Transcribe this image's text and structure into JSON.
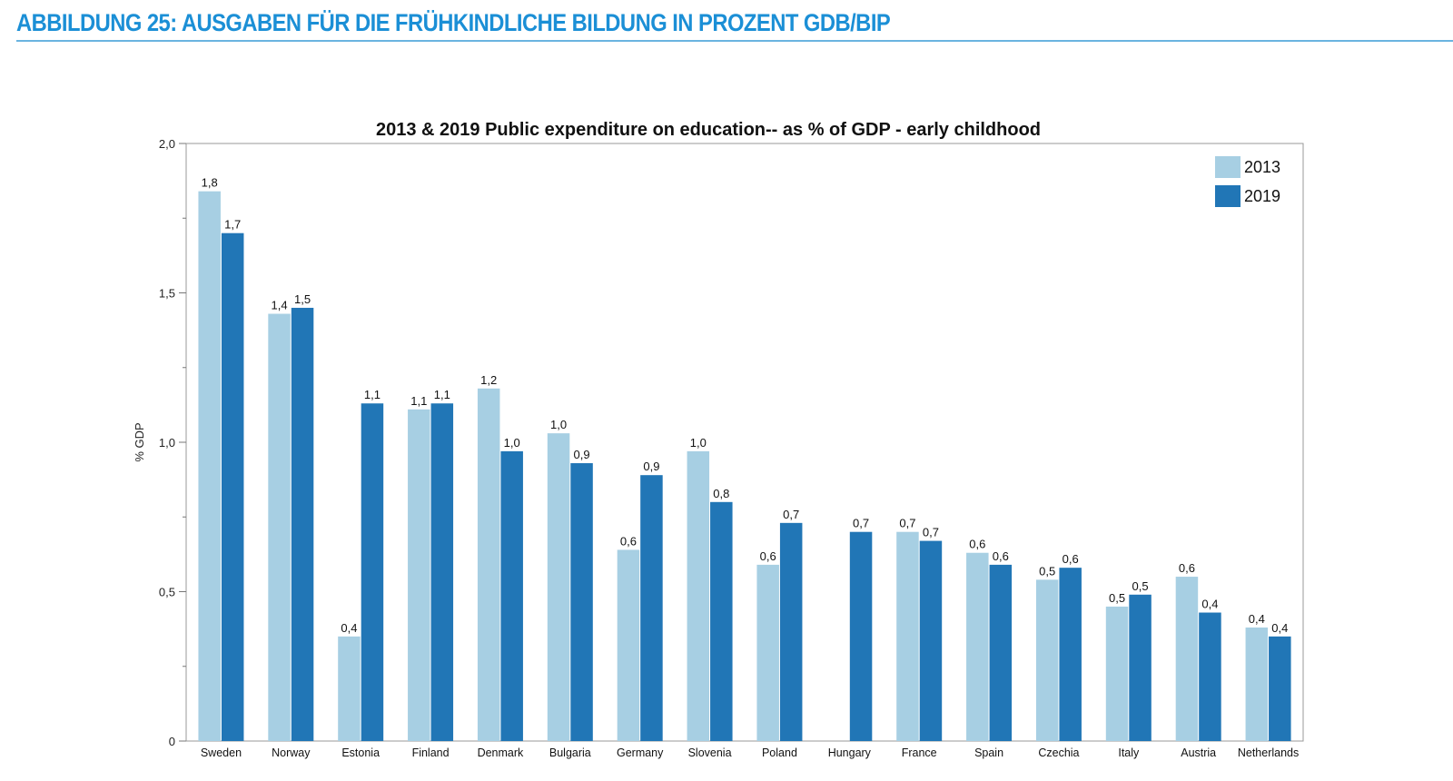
{
  "page": {
    "heading": "ABBILDUNG 25: AUSGABEN FÜR DIE FRÜHKINDLICHE BILDUNG IN PROZENT GDB/BIP"
  },
  "colors": {
    "series_2013": "#a7cfe3",
    "series_2019": "#2176b6",
    "heading": "#1b8fd6"
  },
  "chart_data": {
    "type": "bar",
    "title": "2013 & 2019 Public expenditure on education-- as % of GDP - early childhood",
    "xlabel": "",
    "ylabel": "% GDP",
    "ylim": [
      0,
      2.0
    ],
    "y_ticks": [
      {
        "value": 0,
        "label": "0"
      },
      {
        "value": 0.5,
        "label": "0,5"
      },
      {
        "value": 1.0,
        "label": "1,0"
      },
      {
        "value": 1.5,
        "label": "1,5"
      },
      {
        "value": 2.0,
        "label": "2,0"
      }
    ],
    "legend_position": "top-right",
    "categories": [
      "Sweden",
      "Norway",
      "Estonia",
      "Finland",
      "Denmark",
      "Bulgaria",
      "Germany",
      "Slovenia",
      "Poland",
      "Hungary",
      "France",
      "Spain",
      "Czechia",
      "Italy",
      "Austria",
      "Netherlands"
    ],
    "series": [
      {
        "name": "2013",
        "values": [
          1.84,
          1.43,
          0.35,
          1.11,
          1.18,
          1.03,
          0.64,
          0.97,
          0.59,
          null,
          0.7,
          0.63,
          0.54,
          0.45,
          0.55,
          0.38
        ],
        "labels": [
          "1,8",
          "1,4",
          "0,4",
          "1,1",
          "1,2",
          "1,0",
          "0,6",
          "1,0",
          "0,6",
          "",
          "0,7",
          "0,6",
          "0,5",
          "0,5",
          "0,6",
          "0,4"
        ]
      },
      {
        "name": "2019",
        "values": [
          1.7,
          1.45,
          1.13,
          1.13,
          0.97,
          0.93,
          0.89,
          0.8,
          0.73,
          0.7,
          0.67,
          0.59,
          0.58,
          0.49,
          0.43,
          0.35
        ],
        "labels": [
          "1,7",
          "1,5",
          "1,1",
          "1,1",
          "1,0",
          "0,9",
          "0,9",
          "0,8",
          "0,7",
          "0,7",
          "0,7",
          "0,6",
          "0,6",
          "0,5",
          "0,4",
          "0,4"
        ]
      }
    ]
  }
}
